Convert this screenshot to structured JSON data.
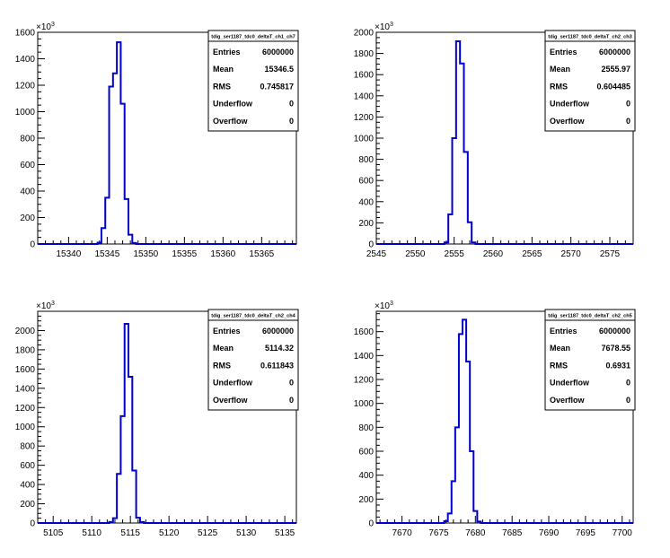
{
  "chart_data": [
    {
      "type": "bar",
      "title": "tdig_ser1187_tdc0_deltaT_ch1_ch7",
      "exponent_label": "10",
      "exponent": "3",
      "xlim": [
        15336,
        15369.5
      ],
      "ylim": [
        0,
        1600
      ],
      "xticks": [
        "15340",
        "15345",
        "15350",
        "15355",
        "15360",
        "15365"
      ],
      "yticks": [
        "0",
        "200",
        "400",
        "600",
        "800",
        "1000",
        "1200",
        "1400",
        "1600"
      ],
      "bin_width": 0.5,
      "bins": [
        {
          "x": 15344.0,
          "y": 10
        },
        {
          "x": 15344.5,
          "y": 120
        },
        {
          "x": 15345.0,
          "y": 350
        },
        {
          "x": 15345.5,
          "y": 1190
        },
        {
          "x": 15346.0,
          "y": 1290
        },
        {
          "x": 15346.5,
          "y": 1525
        },
        {
          "x": 15347.0,
          "y": 1060
        },
        {
          "x": 15347.5,
          "y": 340
        },
        {
          "x": 15348.0,
          "y": 70
        },
        {
          "x": 15348.5,
          "y": 8
        }
      ],
      "stats": [
        {
          "label": "Entries",
          "value": "6000000"
        },
        {
          "label": "Mean",
          "value": "15346.5"
        },
        {
          "label": "RMS",
          "value": "0.745817"
        },
        {
          "label": "Underflow",
          "value": "0"
        },
        {
          "label": "Overflow",
          "value": "0"
        }
      ],
      "line_color": "#0000cc",
      "grid": false
    },
    {
      "type": "bar",
      "title": "tdig_ser1187_tdc0_deltaT_ch2_ch3",
      "exponent_label": "10",
      "exponent": "3",
      "xlim": [
        2545,
        2578
      ],
      "ylim": [
        0,
        2000
      ],
      "xticks": [
        "2545",
        "2550",
        "2555",
        "2560",
        "2565",
        "2570",
        "2575"
      ],
      "yticks": [
        "0",
        "200",
        "400",
        "600",
        "800",
        "1000",
        "1200",
        "1400",
        "1600",
        "1800",
        "2000"
      ],
      "bin_width": 0.5,
      "bins": [
        {
          "x": 2554.0,
          "y": 15
        },
        {
          "x": 2554.5,
          "y": 280
        },
        {
          "x": 2555.0,
          "y": 1000
        },
        {
          "x": 2555.5,
          "y": 1915
        },
        {
          "x": 2556.0,
          "y": 1705
        },
        {
          "x": 2556.5,
          "y": 870
        },
        {
          "x": 2557.0,
          "y": 205
        },
        {
          "x": 2557.5,
          "y": 15
        }
      ],
      "stats": [
        {
          "label": "Entries",
          "value": "6000000"
        },
        {
          "label": "Mean",
          "value": "2555.97"
        },
        {
          "label": "RMS",
          "value": "0.604485"
        },
        {
          "label": "Underflow",
          "value": "0"
        },
        {
          "label": "Overflow",
          "value": "0"
        }
      ],
      "line_color": "#0000cc",
      "grid": false
    },
    {
      "type": "bar",
      "title": "tdig_ser1187_tdc0_deltaT_ch2_ch4",
      "exponent_label": "10",
      "exponent": "3",
      "xlim": [
        5103,
        5136.5
      ],
      "ylim": [
        0,
        2200
      ],
      "xticks": [
        "5105",
        "5110",
        "5115",
        "5120",
        "5125",
        "5130",
        "5135"
      ],
      "yticks": [
        "0",
        "200",
        "400",
        "600",
        "800",
        "1000",
        "1200",
        "1400",
        "1600",
        "1800",
        "2000"
      ],
      "bin_width": 0.5,
      "bins": [
        {
          "x": 5112.5,
          "y": 10
        },
        {
          "x": 5113.0,
          "y": 50
        },
        {
          "x": 5113.5,
          "y": 510
        },
        {
          "x": 5114.0,
          "y": 1110
        },
        {
          "x": 5114.5,
          "y": 2070
        },
        {
          "x": 5115.0,
          "y": 1520
        },
        {
          "x": 5115.5,
          "y": 545
        },
        {
          "x": 5116.0,
          "y": 55
        },
        {
          "x": 5116.5,
          "y": 10
        }
      ],
      "stats": [
        {
          "label": "Entries",
          "value": "6000000"
        },
        {
          "label": "Mean",
          "value": "5114.32"
        },
        {
          "label": "RMS",
          "value": "0.611843"
        },
        {
          "label": "Underflow",
          "value": "0"
        },
        {
          "label": "Overflow",
          "value": "0"
        }
      ],
      "line_color": "#0000cc",
      "grid": false
    },
    {
      "type": "bar",
      "title": "tdig_ser1187_tdc0_deltaT_ch2_ch5",
      "exponent_label": "10",
      "exponent": "3",
      "xlim": [
        7666.5,
        7701.5
      ],
      "ylim": [
        0,
        1770
      ],
      "xticks": [
        "7670",
        "7675",
        "7680",
        "7685",
        "7690",
        "7695",
        "7700"
      ],
      "yticks": [
        "0",
        "200",
        "400",
        "600",
        "800",
        "1000",
        "1200",
        "1400",
        "1600"
      ],
      "bin_width": 0.5,
      "bins": [
        {
          "x": 7676.0,
          "y": 15
        },
        {
          "x": 7676.5,
          "y": 80
        },
        {
          "x": 7677.0,
          "y": 350
        },
        {
          "x": 7677.5,
          "y": 800
        },
        {
          "x": 7678.0,
          "y": 1580
        },
        {
          "x": 7678.5,
          "y": 1700
        },
        {
          "x": 7679.0,
          "y": 1350
        },
        {
          "x": 7679.5,
          "y": 600
        },
        {
          "x": 7680.0,
          "y": 100
        },
        {
          "x": 7680.5,
          "y": 12
        }
      ],
      "stats": [
        {
          "label": "Entries",
          "value": "6000000"
        },
        {
          "label": "Mean",
          "value": "7678.55"
        },
        {
          "label": "RMS",
          "value": "0.6931"
        },
        {
          "label": "Underflow",
          "value": "0"
        },
        {
          "label": "Overflow",
          "value": "0"
        }
      ],
      "line_color": "#0000cc",
      "grid": false
    }
  ]
}
